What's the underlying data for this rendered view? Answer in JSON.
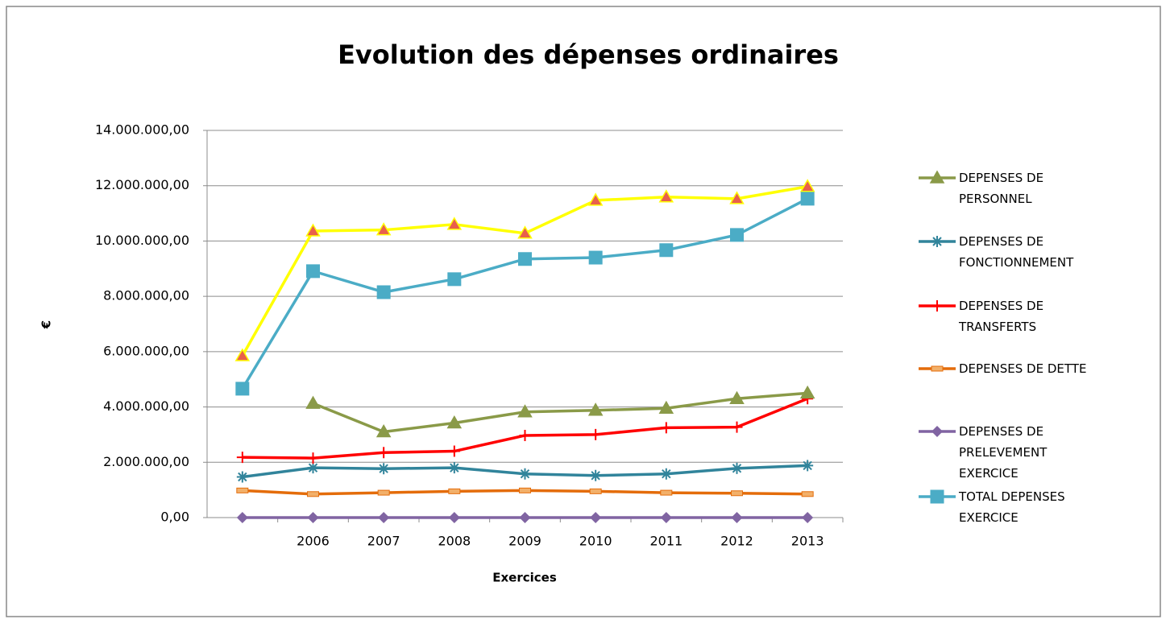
{
  "chart_data": {
    "type": "line",
    "title": "Evolution des dépenses ordinaires",
    "x_label": "Exercices",
    "y_label": "€",
    "categories": [
      null,
      "2006",
      "2007",
      "2008",
      "2009",
      "2010",
      "2011",
      "2012",
      "2013"
    ],
    "ylim": [
      0,
      14000000
    ],
    "yticks": [
      {
        "value": 0,
        "label": "0,00"
      },
      {
        "value": 2000000,
        "label": "2.000.000,00"
      },
      {
        "value": 4000000,
        "label": "4.000.000,00"
      },
      {
        "value": 6000000,
        "label": "6.000.000,00"
      },
      {
        "value": 8000000,
        "label": "8.000.000,00"
      },
      {
        "value": 10000000,
        "label": "10.000.000,00"
      },
      {
        "value": 12000000,
        "label": "12.000.000,00"
      },
      {
        "value": 14000000,
        "label": "14.000.000,00"
      }
    ],
    "grid": true,
    "legend": "right",
    "series": [
      {
        "name": "DEPENSES DE PERSONNEL",
        "color": "#8a9a48",
        "marker": "triangle",
        "values": [
          null,
          4130000,
          3100000,
          3420000,
          3820000,
          3880000,
          3950000,
          4300000,
          4500000
        ]
      },
      {
        "name": "DEPENSES DE FONCTIONNEMENT",
        "color": "#31849b",
        "marker": "asterisk",
        "values": [
          1470000,
          1800000,
          1770000,
          1800000,
          1580000,
          1520000,
          1580000,
          1780000,
          1880000
        ]
      },
      {
        "name": "DEPENSES DE TRANSFERTS",
        "color": "#ff0000",
        "marker": "plus",
        "values": [
          2180000,
          2150000,
          2350000,
          2400000,
          2970000,
          3000000,
          3250000,
          3270000,
          4300000
        ]
      },
      {
        "name": "DEPENSES DE DETTE",
        "color": "#e46c0a",
        "marker": "dash",
        "values": [
          980000,
          850000,
          900000,
          950000,
          980000,
          950000,
          900000,
          880000,
          850000
        ]
      },
      {
        "name": "DEPENSES DE PRELEVEMENT EXERCICE",
        "color": "#8064a2",
        "marker": "diamond",
        "values": [
          0,
          0,
          0,
          0,
          0,
          0,
          0,
          0,
          0
        ]
      },
      {
        "name": "TOTAL DEPENSES EXERCICE",
        "color": "#4bacc6",
        "marker": "square",
        "values": [
          4660000,
          8910000,
          8150000,
          8620000,
          9350000,
          9400000,
          9670000,
          10220000,
          11530000
        ]
      },
      {
        "color": "#ffff00",
        "marker": "triangle",
        "marker_color": "#e8604c",
        "values": [
          5850000,
          10360000,
          10400000,
          10600000,
          10280000,
          11470000,
          11590000,
          11530000,
          11970000
        ]
      }
    ]
  }
}
